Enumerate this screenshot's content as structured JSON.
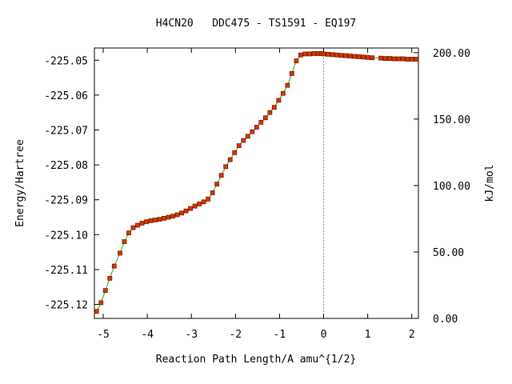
{
  "chart_data": {
    "type": "line",
    "title": "H4CN20   DDC475 - TS1591 - EQ197",
    "xlabel": "Reaction Path Length/A amu^{1/2}",
    "ylabel": "Energy/Hartree",
    "y2label": "kJ/mol",
    "xlim": [
      -5.2,
      2.15
    ],
    "ylim": [
      -225.124,
      -225.0465
    ],
    "y2lim": [
      0,
      203.5
    ],
    "x_ticks": [
      -5,
      -4,
      -3,
      -2,
      -1,
      0,
      1,
      2
    ],
    "x_tick_labels": [
      "-5",
      "-4",
      "-3",
      "-2",
      "-1",
      "0",
      "1",
      "2"
    ],
    "y_ticks": [
      -225.05,
      -225.06,
      -225.07,
      -225.08,
      -225.09,
      -225.1,
      -225.11,
      -225.12
    ],
    "y_tick_labels": [
      "-225.05",
      "-225.06",
      "-225.07",
      "-225.08",
      "-225.09",
      "-225.10",
      "-225.11",
      "-225.12"
    ],
    "y2_ticks": [
      0,
      50,
      100,
      150,
      200
    ],
    "y2_tick_labels": [
      "0.00",
      "50.00",
      "100.00",
      "150.00",
      "200.00"
    ],
    "grid": false,
    "ts_marker_x": 0,
    "line_color": "#2aa32a",
    "marker_color": "#d43a00",
    "marker_edge_color": "#7a1500",
    "ts_line_color": "#888888",
    "series": [
      {
        "x": [
          -5.15,
          -5.05,
          -4.95,
          -4.85,
          -4.75,
          -4.62,
          -4.52,
          -4.42,
          -4.32,
          -4.22,
          -4.12,
          -4.02,
          -3.92,
          -3.82,
          -3.72,
          -3.62,
          -3.52,
          -3.42,
          -3.32,
          -3.22,
          -3.12,
          -3.02,
          -2.92,
          -2.82,
          -2.72,
          -2.62,
          -2.52,
          -2.42,
          -2.32,
          -2.22,
          -2.12,
          -2.02,
          -1.92,
          -1.82,
          -1.72,
          -1.62,
          -1.52,
          -1.42,
          -1.32,
          -1.22,
          -1.12,
          -1.02,
          -0.92,
          -0.82,
          -0.72,
          -0.62,
          -0.52,
          -0.42,
          -0.32,
          -0.22,
          -0.12,
          -0.05,
          0.0,
          0.1,
          0.2,
          0.3,
          0.4,
          0.5,
          0.6,
          0.7,
          0.8,
          0.9,
          1.0,
          1.1,
          1.3,
          1.4,
          1.5,
          1.6,
          1.7,
          1.8,
          1.9,
          2.0,
          2.1
        ],
        "y": [
          -225.122,
          -225.1195,
          -225.116,
          -225.1125,
          -225.109,
          -225.1053,
          -225.102,
          -225.0995,
          -225.098,
          -225.0973,
          -225.0967,
          -225.0963,
          -225.096,
          -225.0958,
          -225.0956,
          -225.0953,
          -225.095,
          -225.0947,
          -225.0943,
          -225.0938,
          -225.0932,
          -225.0925,
          -225.0918,
          -225.0912,
          -225.0906,
          -225.0898,
          -225.088,
          -225.0855,
          -225.083,
          -225.0805,
          -225.0785,
          -225.0765,
          -225.0745,
          -225.073,
          -225.0718,
          -225.0705,
          -225.0692,
          -225.0678,
          -225.0665,
          -225.065,
          -225.0635,
          -225.0615,
          -225.0595,
          -225.0572,
          -225.0538,
          -225.0502,
          -225.0485,
          -225.0482,
          -225.0482,
          -225.0481,
          -225.0481,
          -225.0481,
          -225.0482,
          -225.0483,
          -225.0484,
          -225.0485,
          -225.0486,
          -225.0487,
          -225.0488,
          -225.0489,
          -225.049,
          -225.0491,
          -225.0492,
          -225.0493,
          -225.0494,
          -225.0495,
          -225.0495,
          -225.0496,
          -225.0496,
          -225.0496,
          -225.0497,
          -225.0497,
          -225.0497
        ]
      }
    ]
  }
}
